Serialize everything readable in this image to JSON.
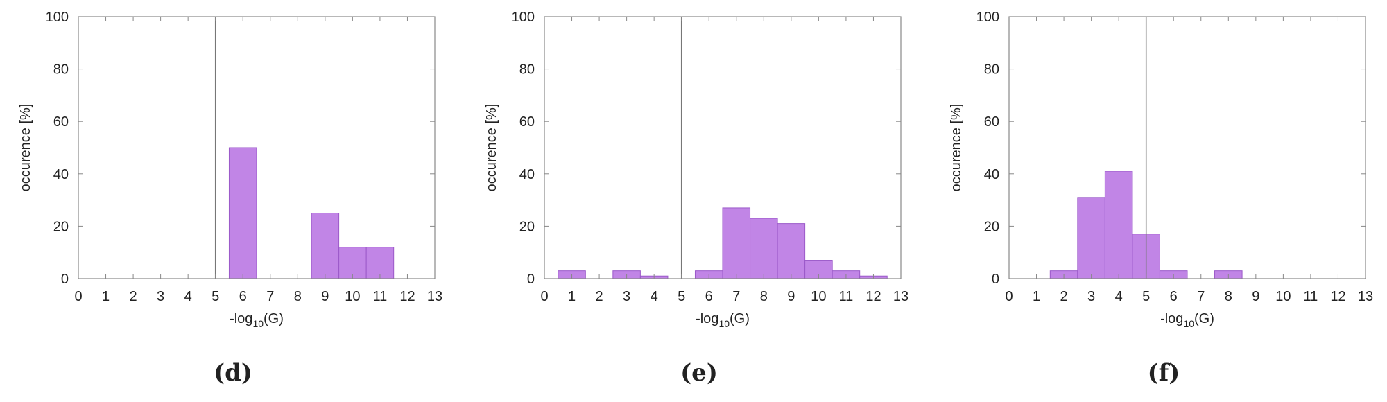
{
  "colors": {
    "bar_fill": "#c185e6",
    "bar_stroke": "#9b59c9",
    "axis": "#888888",
    "threshold_line": "#777777",
    "text": "#222222"
  },
  "chart_data": [
    {
      "type": "bar",
      "caption": "(d)",
      "xlabel": "-log10(G)",
      "ylabel": "occurence [%]",
      "xlim": [
        0,
        13
      ],
      "ylim": [
        0,
        100
      ],
      "x_ticks": [
        0,
        1,
        2,
        3,
        4,
        5,
        6,
        7,
        8,
        9,
        10,
        11,
        12,
        13
      ],
      "y_ticks": [
        0,
        20,
        40,
        60,
        80,
        100
      ],
      "grid": false,
      "threshold_x": 5,
      "bins": [
        {
          "x": 6,
          "value": 50
        },
        {
          "x": 9,
          "value": 25
        },
        {
          "x": 10,
          "value": 12
        },
        {
          "x": 11,
          "value": 12
        }
      ]
    },
    {
      "type": "bar",
      "caption": "(e)",
      "xlabel": "-log10(G)",
      "ylabel": "occurence [%]",
      "xlim": [
        0,
        13
      ],
      "ylim": [
        0,
        100
      ],
      "x_ticks": [
        0,
        1,
        2,
        3,
        4,
        5,
        6,
        7,
        8,
        9,
        10,
        11,
        12,
        13
      ],
      "y_ticks": [
        0,
        20,
        40,
        60,
        80,
        100
      ],
      "grid": false,
      "threshold_x": 5,
      "bins": [
        {
          "x": 1,
          "value": 3
        },
        {
          "x": 3,
          "value": 3
        },
        {
          "x": 4,
          "value": 1
        },
        {
          "x": 6,
          "value": 3
        },
        {
          "x": 7,
          "value": 27
        },
        {
          "x": 8,
          "value": 23
        },
        {
          "x": 9,
          "value": 21
        },
        {
          "x": 10,
          "value": 7
        },
        {
          "x": 11,
          "value": 3
        },
        {
          "x": 12,
          "value": 1
        }
      ]
    },
    {
      "type": "bar",
      "caption": "(f)",
      "xlabel": "-log10(G)",
      "ylabel": "occurence [%]",
      "xlim": [
        0,
        13
      ],
      "ylim": [
        0,
        100
      ],
      "x_ticks": [
        0,
        1,
        2,
        3,
        4,
        5,
        6,
        7,
        8,
        9,
        10,
        11,
        12,
        13
      ],
      "y_ticks": [
        0,
        20,
        40,
        60,
        80,
        100
      ],
      "grid": false,
      "threshold_x": 5,
      "bins": [
        {
          "x": 2,
          "value": 3
        },
        {
          "x": 3,
          "value": 31
        },
        {
          "x": 4,
          "value": 41
        },
        {
          "x": 5,
          "value": 17
        },
        {
          "x": 6,
          "value": 3
        },
        {
          "x": 8,
          "value": 3
        }
      ]
    }
  ]
}
